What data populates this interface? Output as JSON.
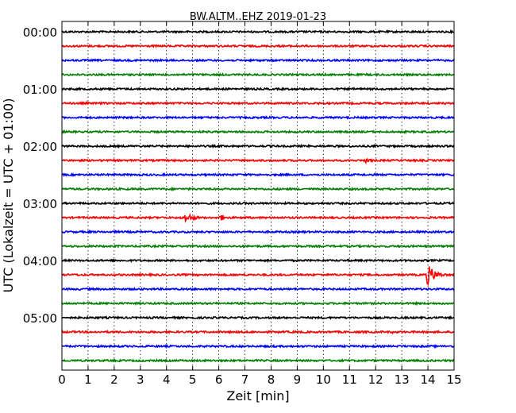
{
  "chart_data": {
    "type": "line",
    "title": "BW.ALTM..EHZ 2019-01-23",
    "xlabel": "Zeit  [min]",
    "ylabel": "UTC (Lokalzeit = UTC + 01:00)",
    "xlim": [
      0,
      15
    ],
    "x_ticks": [
      "0",
      "1",
      "2",
      "3",
      "4",
      "5",
      "6",
      "7",
      "8",
      "9",
      "10",
      "11",
      "12",
      "13",
      "14",
      "15"
    ],
    "y_tick_labels": [
      "00:00",
      "01:00",
      "02:00",
      "03:00",
      "04:00",
      "05:00"
    ],
    "grid": "vertical dotted at each minute",
    "trace_colors": [
      "#000000",
      "#ff0000",
      "#0000ff",
      "#008000"
    ],
    "traces": [
      {
        "start": "00:00",
        "color": "#000000",
        "events": []
      },
      {
        "start": "00:15",
        "color": "#ff0000",
        "events": []
      },
      {
        "start": "00:30",
        "color": "#0000ff",
        "events": []
      },
      {
        "start": "00:45",
        "color": "#008000",
        "events": []
      },
      {
        "start": "01:00",
        "color": "#000000",
        "events": []
      },
      {
        "start": "01:15",
        "color": "#ff0000",
        "events": []
      },
      {
        "start": "01:30",
        "color": "#0000ff",
        "events": []
      },
      {
        "start": "01:45",
        "color": "#008000",
        "events": []
      },
      {
        "start": "02:00",
        "color": "#000000",
        "events": []
      },
      {
        "start": "02:15",
        "color": "#ff0000",
        "events": [
          {
            "min": 11.6,
            "amp": 0.35,
            "dur": 0.5
          }
        ]
      },
      {
        "start": "02:30",
        "color": "#0000ff",
        "events": []
      },
      {
        "start": "02:45",
        "color": "#008000",
        "events": []
      },
      {
        "start": "03:00",
        "color": "#000000",
        "events": []
      },
      {
        "start": "03:15",
        "color": "#ff0000",
        "events": [
          {
            "min": 4.65,
            "amp": 0.5,
            "dur": 1.1
          },
          {
            "min": 6.0,
            "amp": 0.3,
            "dur": 0.8
          }
        ]
      },
      {
        "start": "03:30",
        "color": "#0000ff",
        "events": []
      },
      {
        "start": "03:45",
        "color": "#008000",
        "events": []
      },
      {
        "start": "04:00",
        "color": "#000000",
        "events": []
      },
      {
        "start": "04:15",
        "color": "#ff0000",
        "events": [
          {
            "min": 2.0,
            "amp": 0.15,
            "dur": 0.15
          },
          {
            "min": 13.9,
            "amp": 0.95,
            "dur": 1.1
          }
        ]
      },
      {
        "start": "04:30",
        "color": "#0000ff",
        "events": []
      },
      {
        "start": "04:45",
        "color": "#008000",
        "events": []
      },
      {
        "start": "05:00",
        "color": "#000000",
        "events": []
      },
      {
        "start": "05:15",
        "color": "#ff0000",
        "events": [
          {
            "min": 2.8,
            "amp": 0.12,
            "dur": 0.3
          },
          {
            "min": 8.9,
            "amp": 0.12,
            "dur": 0.3
          },
          {
            "min": 12.6,
            "amp": 0.15,
            "dur": 0.4
          }
        ]
      },
      {
        "start": "05:30",
        "color": "#0000ff",
        "events": []
      },
      {
        "start": "05:45",
        "color": "#008000",
        "events": []
      }
    ]
  }
}
